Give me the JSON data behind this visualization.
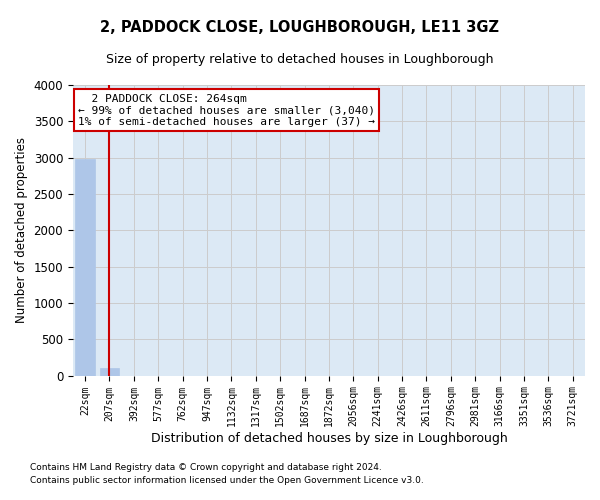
{
  "title": "2, PADDOCK CLOSE, LOUGHBOROUGH, LE11 3GZ",
  "subtitle": "Size of property relative to detached houses in Loughborough",
  "xlabel": "Distribution of detached houses by size in Loughborough",
  "ylabel": "Number of detached properties",
  "footnote1": "Contains HM Land Registry data © Crown copyright and database right 2024.",
  "footnote2": "Contains public sector information licensed under the Open Government Licence v3.0.",
  "categories": [
    "22sqm",
    "207sqm",
    "392sqm",
    "577sqm",
    "762sqm",
    "947sqm",
    "1132sqm",
    "1317sqm",
    "1502sqm",
    "1687sqm",
    "1872sqm",
    "2056sqm",
    "2241sqm",
    "2426sqm",
    "2611sqm",
    "2796sqm",
    "2981sqm",
    "3166sqm",
    "3351sqm",
    "3536sqm",
    "3721sqm"
  ],
  "bar_values": [
    2980,
    110,
    0,
    0,
    0,
    0,
    0,
    0,
    0,
    0,
    0,
    0,
    0,
    0,
    0,
    0,
    0,
    0,
    0,
    0,
    0
  ],
  "bar_color": "#aec6e8",
  "bar_edge_color": "#aec6e8",
  "grid_color": "#cccccc",
  "background_color": "#dce9f5",
  "annotation_text": "  2 PADDOCK CLOSE: 264sqm\n← 99% of detached houses are smaller (3,040)\n1% of semi-detached houses are larger (37) →",
  "annotation_box_color": "#ffffff",
  "annotation_box_edge_color": "#cc0000",
  "vline_x": 1,
  "vline_color": "#cc0000",
  "ylim": [
    0,
    4000
  ],
  "yticks": [
    0,
    500,
    1000,
    1500,
    2000,
    2500,
    3000,
    3500,
    4000
  ]
}
